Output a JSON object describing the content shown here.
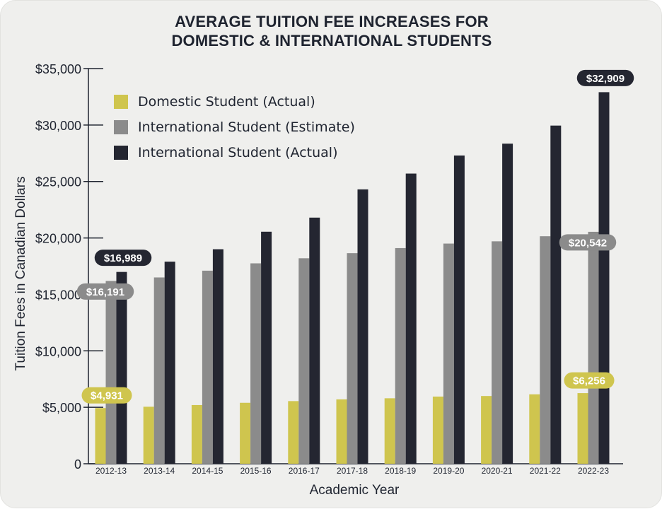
{
  "chart_data": {
    "type": "bar",
    "title": [
      "AVERAGE TUITION FEE INCREASES FOR",
      "DOMESTIC & INTERNATIONAL STUDENTS"
    ],
    "xlabel": "Academic Year",
    "ylabel": "Tuition Fees in Canadian Dollars",
    "ylim": [
      0,
      35000
    ],
    "yticks": [
      0,
      5000,
      10000,
      15000,
      20000,
      25000,
      30000,
      35000
    ],
    "ytick_labels": [
      "0",
      "$5,000",
      "$10,000",
      "$15,000",
      "$20,000",
      "$25,000",
      "$30,000",
      "$35,000"
    ],
    "grid": false,
    "legend_position": "top-left",
    "categories": [
      "2012-13",
      "2013-14",
      "2014-15",
      "2015-16",
      "2016-17",
      "2017-18",
      "2018-19",
      "2019-20",
      "2020-21",
      "2021-22",
      "2022-23"
    ],
    "series": [
      {
        "name": "Domestic Student (Actual)",
        "color": "#cfc54e",
        "values": [
          4931,
          5050,
          5200,
          5400,
          5550,
          5700,
          5800,
          5950,
          6000,
          6150,
          6256
        ]
      },
      {
        "name": "International Student (Estimate)",
        "color": "#8b8b8b",
        "values": [
          16191,
          16500,
          17100,
          17750,
          18200,
          18650,
          19100,
          19500,
          19700,
          20150,
          20542
        ]
      },
      {
        "name": "International Student (Actual)",
        "color": "#242631",
        "values": [
          16989,
          17900,
          19000,
          20550,
          21800,
          24300,
          25700,
          27300,
          28350,
          29950,
          32909
        ]
      }
    ],
    "annotations": [
      {
        "series": 0,
        "index": 0,
        "text": "$4,931"
      },
      {
        "series": 1,
        "index": 0,
        "text": "$16,191"
      },
      {
        "series": 2,
        "index": 0,
        "text": "$16,989"
      },
      {
        "series": 0,
        "index": 10,
        "text": "$6,256"
      },
      {
        "series": 1,
        "index": 10,
        "text": "$20,542"
      },
      {
        "series": 2,
        "index": 10,
        "text": "$32,909"
      }
    ]
  }
}
